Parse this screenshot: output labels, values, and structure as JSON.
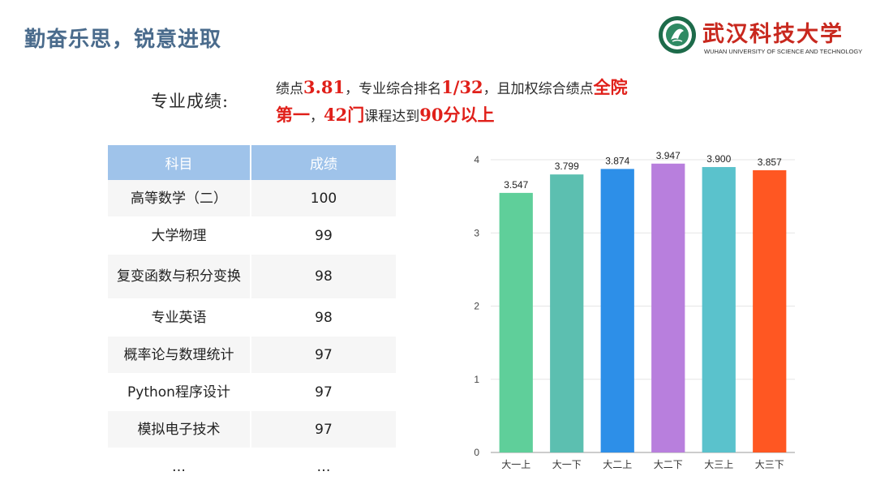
{
  "header": {
    "title": "勤奋乐思，锐意进取",
    "logo_cn": "武汉科技大学",
    "logo_en": "WUHAN UNIVERSITY OF SCIENCE AND TECHNOLOGY"
  },
  "performance": {
    "label": "专业成绩:",
    "line1": [
      {
        "text": "绩点",
        "hl": false
      },
      {
        "text": "3.81",
        "hl": true
      },
      {
        "text": "，专业综合排名",
        "hl": false
      },
      {
        "text": "1/32",
        "hl": true
      },
      {
        "text": "，且加权综合绩点",
        "hl": false
      },
      {
        "text": "全院",
        "hl": true
      }
    ],
    "line2": [
      {
        "text": "第一",
        "hl": true
      },
      {
        "text": "，",
        "hl": false
      },
      {
        "text": "42门",
        "hl": true
      },
      {
        "text": "课程达到",
        "hl": false
      },
      {
        "text": "90分以上",
        "hl": true
      }
    ]
  },
  "table": {
    "headers": [
      "科目",
      "成绩"
    ],
    "rows": [
      {
        "subject": "高等数学（二）",
        "score": "100"
      },
      {
        "subject": "大学物理",
        "score": "99"
      },
      {
        "subject": "复变函数与积分变换",
        "score": "98"
      },
      {
        "subject": "专业英语",
        "score": "98"
      },
      {
        "subject": "概率论与数理统计",
        "score": "97"
      },
      {
        "subject": "Python程序设计",
        "score": "97"
      },
      {
        "subject": "模拟电子技术",
        "score": "97"
      },
      {
        "subject": "…",
        "score": "…"
      }
    ]
  },
  "chart_data": {
    "type": "bar",
    "categories": [
      "大一上",
      "大一下",
      "大二上",
      "大二下",
      "大三上",
      "大三下"
    ],
    "values": [
      3.547,
      3.799,
      3.874,
      3.947,
      3.9,
      3.857
    ],
    "value_labels": [
      "3.547",
      "3.799",
      "3.874",
      "3.947",
      "3.900",
      "3.857"
    ],
    "colors": [
      "#5fcf9a",
      "#5cbfb0",
      "#2d8fe8",
      "#b87fdd",
      "#5ac2cc",
      "#ff5722"
    ],
    "ylim": [
      0,
      4
    ],
    "yticks": [
      "0",
      "1",
      "2",
      "3",
      "4"
    ],
    "grid": true,
    "title": "",
    "xlabel": "",
    "ylabel": ""
  }
}
